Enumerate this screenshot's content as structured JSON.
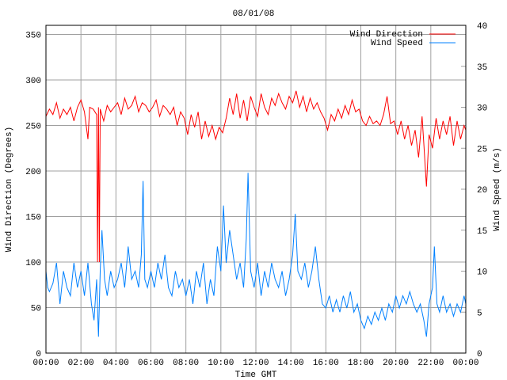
{
  "chart_data": {
    "type": "line",
    "title": "08/01/08",
    "xlabel": "Time GMT",
    "ylabel_left": "Wind Direction (Degrees)",
    "ylabel_right": "Wind Speed (m/s)",
    "xlim_hours": [
      0,
      24
    ],
    "ylim_left": [
      0,
      360
    ],
    "ylim_right": [
      0,
      40
    ],
    "x_ticks": [
      "00:00",
      "02:00",
      "04:00",
      "06:00",
      "08:00",
      "10:00",
      "12:00",
      "14:00",
      "16:00",
      "18:00",
      "20:00",
      "22:00",
      "00:00"
    ],
    "y_left_ticks": [
      0,
      50,
      100,
      150,
      200,
      250,
      300,
      350
    ],
    "y_right_ticks": [
      0,
      5,
      10,
      15,
      20,
      25,
      30,
      35,
      40
    ],
    "grid": true,
    "legend_position": "top-right",
    "series": [
      {
        "name": "Wind Direction",
        "axis": "left",
        "color": "#ff0000",
        "points": [
          [
            0,
            260
          ],
          [
            0.2,
            268
          ],
          [
            0.4,
            262
          ],
          [
            0.6,
            275
          ],
          [
            0.8,
            258
          ],
          [
            1,
            268
          ],
          [
            1.2,
            262
          ],
          [
            1.4,
            270
          ],
          [
            1.6,
            255
          ],
          [
            1.8,
            270
          ],
          [
            2,
            278
          ],
          [
            2.2,
            265
          ],
          [
            2.4,
            235
          ],
          [
            2.5,
            270
          ],
          [
            2.7,
            268
          ],
          [
            2.9,
            262
          ],
          [
            2.95,
            100
          ],
          [
            3.0,
            270
          ],
          [
            3.05,
            100
          ],
          [
            3.1,
            268
          ],
          [
            3.3,
            255
          ],
          [
            3.5,
            272
          ],
          [
            3.7,
            265
          ],
          [
            3.9,
            270
          ],
          [
            4.1,
            275
          ],
          [
            4.3,
            262
          ],
          [
            4.5,
            280
          ],
          [
            4.7,
            268
          ],
          [
            4.9,
            272
          ],
          [
            5.1,
            282
          ],
          [
            5.3,
            265
          ],
          [
            5.5,
            275
          ],
          [
            5.7,
            272
          ],
          [
            5.9,
            265
          ],
          [
            6.1,
            270
          ],
          [
            6.3,
            278
          ],
          [
            6.5,
            260
          ],
          [
            6.7,
            272
          ],
          [
            6.9,
            268
          ],
          [
            7.1,
            262
          ],
          [
            7.3,
            270
          ],
          [
            7.5,
            250
          ],
          [
            7.7,
            265
          ],
          [
            7.9,
            258
          ],
          [
            8.1,
            240
          ],
          [
            8.3,
            262
          ],
          [
            8.5,
            248
          ],
          [
            8.7,
            265
          ],
          [
            8.9,
            235
          ],
          [
            9.1,
            255
          ],
          [
            9.3,
            238
          ],
          [
            9.5,
            250
          ],
          [
            9.7,
            235
          ],
          [
            9.9,
            248
          ],
          [
            10.1,
            242
          ],
          [
            10.3,
            258
          ],
          [
            10.5,
            280
          ],
          [
            10.7,
            262
          ],
          [
            10.9,
            285
          ],
          [
            11.1,
            258
          ],
          [
            11.3,
            278
          ],
          [
            11.5,
            255
          ],
          [
            11.7,
            282
          ],
          [
            11.9,
            270
          ],
          [
            12.1,
            260
          ],
          [
            12.3,
            285
          ],
          [
            12.5,
            270
          ],
          [
            12.7,
            262
          ],
          [
            12.9,
            280
          ],
          [
            13.1,
            272
          ],
          [
            13.3,
            285
          ],
          [
            13.5,
            275
          ],
          [
            13.7,
            268
          ],
          [
            13.9,
            282
          ],
          [
            14.1,
            275
          ],
          [
            14.3,
            288
          ],
          [
            14.5,
            270
          ],
          [
            14.7,
            282
          ],
          [
            14.9,
            265
          ],
          [
            15.1,
            280
          ],
          [
            15.3,
            268
          ],
          [
            15.5,
            275
          ],
          [
            15.7,
            265
          ],
          [
            15.9,
            258
          ],
          [
            16.1,
            245
          ],
          [
            16.3,
            262
          ],
          [
            16.5,
            255
          ],
          [
            16.7,
            268
          ],
          [
            16.9,
            258
          ],
          [
            17.1,
            272
          ],
          [
            17.3,
            262
          ],
          [
            17.5,
            278
          ],
          [
            17.7,
            265
          ],
          [
            17.9,
            268
          ],
          [
            18.1,
            255
          ],
          [
            18.3,
            250
          ],
          [
            18.5,
            260
          ],
          [
            18.7,
            252
          ],
          [
            18.9,
            255
          ],
          [
            19.1,
            250
          ],
          [
            19.3,
            262
          ],
          [
            19.5,
            282
          ],
          [
            19.7,
            252
          ],
          [
            19.9,
            255
          ],
          [
            20.1,
            240
          ],
          [
            20.3,
            255
          ],
          [
            20.5,
            235
          ],
          [
            20.7,
            250
          ],
          [
            20.9,
            228
          ],
          [
            21.1,
            245
          ],
          [
            21.3,
            215
          ],
          [
            21.5,
            260
          ],
          [
            21.6,
            230
          ],
          [
            21.75,
            183
          ],
          [
            21.9,
            240
          ],
          [
            22.1,
            225
          ],
          [
            22.3,
            258
          ],
          [
            22.5,
            235
          ],
          [
            22.7,
            255
          ],
          [
            22.9,
            240
          ],
          [
            23.1,
            260
          ],
          [
            23.3,
            228
          ],
          [
            23.5,
            255
          ],
          [
            23.7,
            235
          ],
          [
            23.9,
            250
          ],
          [
            24,
            245
          ]
        ]
      },
      {
        "name": "Wind Speed",
        "axis": "right",
        "color": "#0080ff",
        "points": [
          [
            0,
            10
          ],
          [
            0.1,
            8
          ],
          [
            0.2,
            7.5
          ],
          [
            0.4,
            8.5
          ],
          [
            0.6,
            11
          ],
          [
            0.8,
            6
          ],
          [
            1,
            10
          ],
          [
            1.2,
            8
          ],
          [
            1.4,
            7
          ],
          [
            1.6,
            11
          ],
          [
            1.8,
            8
          ],
          [
            2,
            10
          ],
          [
            2.2,
            7
          ],
          [
            2.4,
            11
          ],
          [
            2.6,
            6
          ],
          [
            2.75,
            4
          ],
          [
            2.9,
            9
          ],
          [
            3.0,
            2
          ],
          [
            3.1,
            10
          ],
          [
            3.2,
            15
          ],
          [
            3.35,
            9
          ],
          [
            3.5,
            7
          ],
          [
            3.7,
            10
          ],
          [
            3.9,
            8
          ],
          [
            4.1,
            9
          ],
          [
            4.3,
            11
          ],
          [
            4.5,
            8
          ],
          [
            4.7,
            13
          ],
          [
            4.9,
            9
          ],
          [
            5.1,
            10
          ],
          [
            5.3,
            8
          ],
          [
            5.45,
            12
          ],
          [
            5.55,
            21
          ],
          [
            5.65,
            9
          ],
          [
            5.8,
            8
          ],
          [
            6,
            10
          ],
          [
            6.2,
            8
          ],
          [
            6.4,
            11
          ],
          [
            6.6,
            9
          ],
          [
            6.8,
            12
          ],
          [
            7,
            8
          ],
          [
            7.2,
            7
          ],
          [
            7.4,
            10
          ],
          [
            7.6,
            8
          ],
          [
            7.8,
            9
          ],
          [
            8,
            7
          ],
          [
            8.2,
            9
          ],
          [
            8.4,
            6
          ],
          [
            8.6,
            10
          ],
          [
            8.8,
            8
          ],
          [
            9,
            11
          ],
          [
            9.2,
            6
          ],
          [
            9.4,
            9
          ],
          [
            9.6,
            7
          ],
          [
            9.8,
            13
          ],
          [
            10,
            10
          ],
          [
            10.15,
            18
          ],
          [
            10.3,
            11
          ],
          [
            10.5,
            15
          ],
          [
            10.7,
            12
          ],
          [
            10.9,
            9
          ],
          [
            11.1,
            11
          ],
          [
            11.3,
            8
          ],
          [
            11.45,
            14
          ],
          [
            11.55,
            22
          ],
          [
            11.7,
            10
          ],
          [
            11.9,
            8
          ],
          [
            12.1,
            11
          ],
          [
            12.3,
            7
          ],
          [
            12.5,
            10
          ],
          [
            12.7,
            8
          ],
          [
            12.9,
            11
          ],
          [
            13.1,
            9
          ],
          [
            13.3,
            8
          ],
          [
            13.5,
            10
          ],
          [
            13.7,
            7
          ],
          [
            13.9,
            9
          ],
          [
            14.1,
            12
          ],
          [
            14.25,
            17
          ],
          [
            14.4,
            10
          ],
          [
            14.6,
            9
          ],
          [
            14.8,
            11
          ],
          [
            15,
            8
          ],
          [
            15.2,
            10
          ],
          [
            15.4,
            13
          ],
          [
            15.6,
            9
          ],
          [
            15.8,
            6
          ],
          [
            16,
            5.5
          ],
          [
            16.2,
            7
          ],
          [
            16.4,
            5
          ],
          [
            16.6,
            6.5
          ],
          [
            16.8,
            5
          ],
          [
            17,
            7
          ],
          [
            17.2,
            5.5
          ],
          [
            17.4,
            7.5
          ],
          [
            17.6,
            5
          ],
          [
            17.8,
            6
          ],
          [
            18,
            4
          ],
          [
            18.2,
            3
          ],
          [
            18.4,
            4.5
          ],
          [
            18.6,
            3.5
          ],
          [
            18.8,
            5
          ],
          [
            19,
            4
          ],
          [
            19.2,
            5.5
          ],
          [
            19.4,
            4
          ],
          [
            19.6,
            6
          ],
          [
            19.8,
            5
          ],
          [
            20,
            7
          ],
          [
            20.2,
            5.5
          ],
          [
            20.4,
            7
          ],
          [
            20.6,
            6
          ],
          [
            20.8,
            7.5
          ],
          [
            21,
            6
          ],
          [
            21.2,
            5
          ],
          [
            21.4,
            6
          ],
          [
            21.6,
            4
          ],
          [
            21.75,
            2
          ],
          [
            21.9,
            6
          ],
          [
            22.1,
            8
          ],
          [
            22.2,
            13
          ],
          [
            22.35,
            6
          ],
          [
            22.5,
            5
          ],
          [
            22.7,
            7
          ],
          [
            22.9,
            5
          ],
          [
            23.1,
            6
          ],
          [
            23.3,
            4.5
          ],
          [
            23.5,
            6
          ],
          [
            23.7,
            5
          ],
          [
            23.9,
            7
          ],
          [
            24,
            6
          ]
        ]
      }
    ]
  }
}
